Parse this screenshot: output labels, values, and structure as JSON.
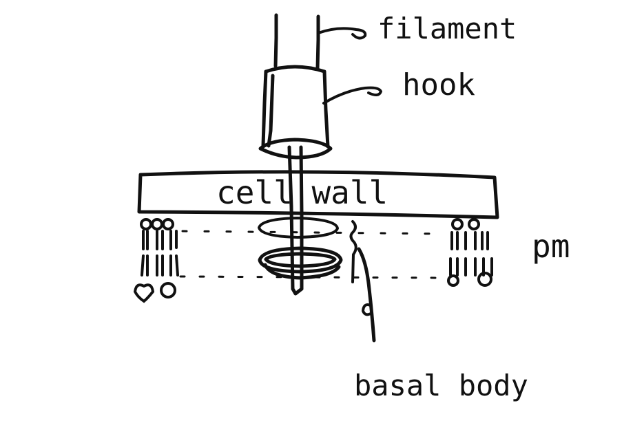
{
  "labels": {
    "filament": "filament",
    "hook": "hook",
    "cell_wall": "cell wall",
    "pm": "pm",
    "basal_body": "basal body"
  },
  "colors": {
    "ink": "#111111",
    "background": "#ffffff"
  }
}
